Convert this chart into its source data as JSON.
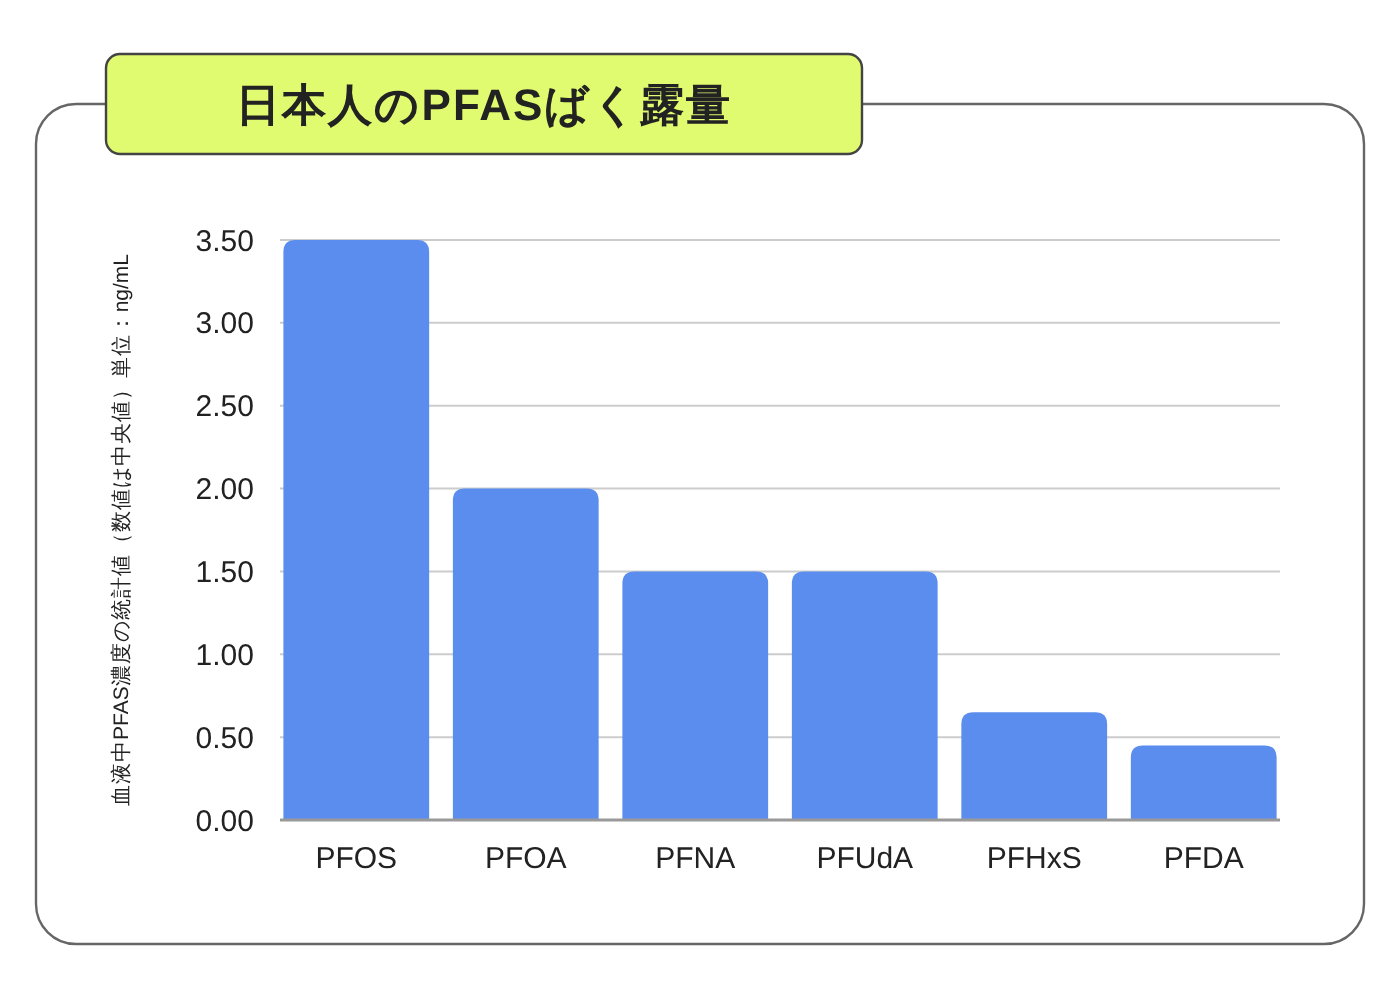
{
  "chart_data": {
    "type": "bar",
    "title": "日本人のPFASばく露量",
    "ylabel": "血液中PFAS濃度の統計値（数値は中央値）単位：ng/mL",
    "categories": [
      "PFOS",
      "PFOA",
      "PFNA",
      "PFUdA",
      "PFHxS",
      "PFDA"
    ],
    "values": [
      3.5,
      2.0,
      1.5,
      1.5,
      0.65,
      0.45
    ],
    "color": "#5b8def",
    "ylim": [
      0,
      3.5
    ],
    "yticks": [
      {
        "value": 0,
        "label": "0.00"
      },
      {
        "value": 0.5,
        "label": "0.50"
      },
      {
        "value": 1,
        "label": "1.00"
      },
      {
        "value": 1.5,
        "label": "1.50"
      },
      {
        "value": 2,
        "label": "2.00"
      },
      {
        "value": 2.5,
        "label": "2.50"
      },
      {
        "value": 3,
        "label": "3.00"
      },
      {
        "value": 3.5,
        "label": "3.50"
      }
    ],
    "grid": "y"
  }
}
